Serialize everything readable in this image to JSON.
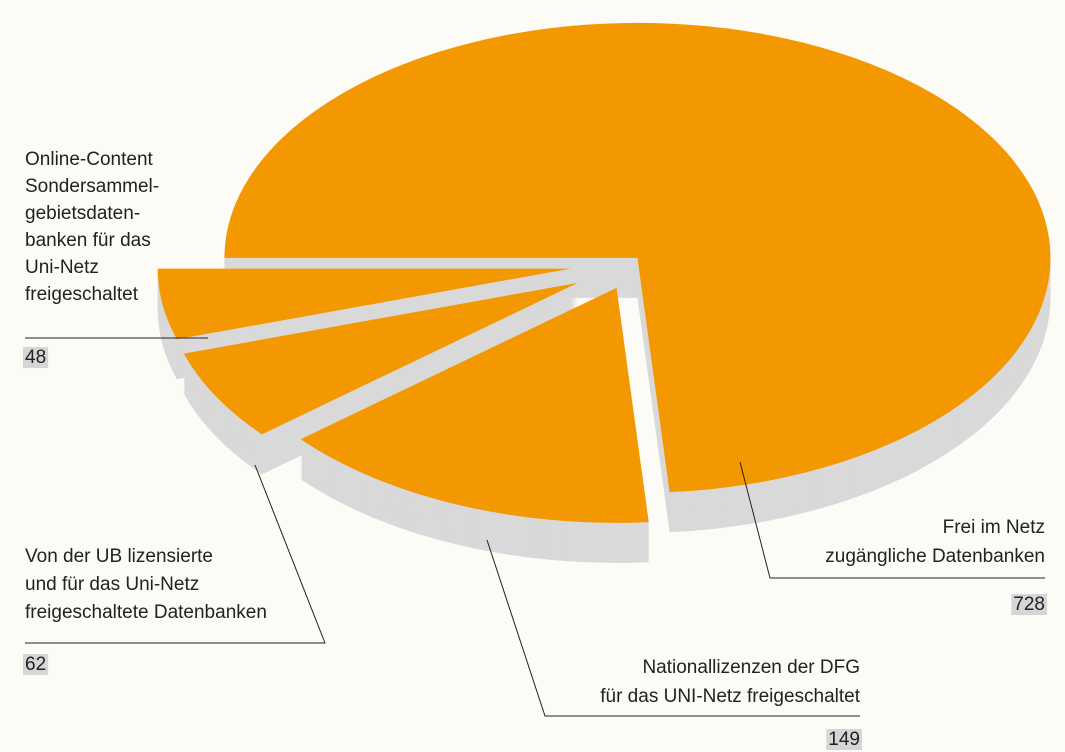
{
  "chart_data": {
    "type": "pie",
    "categories": [
      [
        "Frei im Netz",
        "zugängliche Datenbanken"
      ],
      [
        "Nationallizenzen der DFG",
        "für das UNI-Netz freigeschaltet"
      ],
      [
        "Von der UB lizensierte",
        "und für das Uni-Netz",
        "freigeschaltete Datenbanken"
      ],
      [
        "Online-Content",
        "Sondersammel-",
        "gebietsdaten-",
        "banken für das",
        "Uni-Netz",
        "freigeschaltet"
      ]
    ],
    "values": [
      728,
      149,
      62,
      48
    ],
    "color": "#f39800"
  }
}
